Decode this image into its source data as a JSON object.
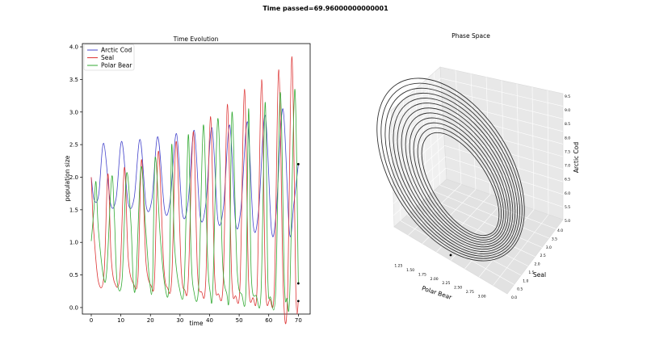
{
  "suptitle": "Time passed=69.96000000000001",
  "chart_data": [
    {
      "type": "line",
      "title": "Time Evolution",
      "xlabel": "time",
      "ylabel": "population size",
      "xlim": [
        -3,
        74
      ],
      "ylim": [
        -0.1,
        4.05
      ],
      "xticks": [
        0,
        10,
        20,
        30,
        40,
        50,
        60,
        70
      ],
      "yticks": [
        0.0,
        0.5,
        1.0,
        1.5,
        2.0,
        2.5,
        3.0,
        3.5,
        4.0
      ],
      "xtick_labels": [
        "0",
        "10",
        "20",
        "30",
        "40",
        "50",
        "60",
        "70"
      ],
      "ytick_labels": [
        "0.0",
        "0.5",
        "1.0",
        "1.5",
        "2.0",
        "2.5",
        "3.0",
        "3.5",
        "4.0"
      ],
      "legend_position": "top-left",
      "series": [
        {
          "name": "Arctic Cod",
          "color": "#4444cc",
          "x": [
            0.0,
            1.0,
            2.5,
            4.2,
            6.5,
            8.4,
            10.3,
            12.5,
            14.5,
            16.5,
            18.6,
            20.5,
            22.5,
            24.8,
            26.6,
            28.8,
            30.8,
            32.7,
            34.8,
            36.8,
            38.7,
            40.8,
            42.8,
            44.7,
            46.8,
            48.8,
            50.6,
            52.8,
            54.8,
            56.6,
            58.8,
            60.9,
            62.5,
            64.8,
            67.0,
            68.5,
            70.0
          ],
          "y": [
            2.0,
            1.65,
            1.72,
            2.52,
            1.6,
            1.68,
            2.55,
            1.6,
            1.68,
            2.58,
            1.55,
            1.66,
            2.62,
            1.5,
            1.62,
            2.67,
            1.45,
            1.6,
            2.72,
            1.4,
            1.58,
            2.76,
            1.35,
            1.55,
            2.8,
            1.3,
            1.52,
            2.85,
            1.25,
            1.5,
            2.95,
            1.2,
            1.45,
            3.05,
            1.15,
            1.6,
            2.2
          ]
        },
        {
          "name": "Seal",
          "color": "#dd3333",
          "x": [
            0.0,
            0.8,
            2.4,
            4.3,
            5.6,
            6.7,
            7.9,
            9.7,
            11.2,
            12.5,
            14.3,
            15.8,
            17.0,
            18.5,
            20.3,
            21.4,
            22.7,
            24.5,
            25.8,
            27.2,
            28.7,
            30.4,
            31.6,
            32.8,
            34.5,
            35.9,
            37.3,
            38.7,
            40.3,
            41.7,
            43.0,
            44.6,
            46.0,
            47.5,
            48.8,
            50.3,
            51.8,
            53.2,
            54.7,
            56.1,
            57.6,
            58.9,
            60.4,
            61.9,
            63.4,
            64.9,
            66.3,
            67.8,
            69.2,
            70.0
          ],
          "y": [
            2.0,
            1.2,
            0.4,
            0.5,
            2.05,
            0.8,
            0.38,
            0.5,
            2.15,
            0.75,
            0.36,
            0.48,
            2.27,
            0.7,
            0.33,
            0.46,
            2.4,
            0.65,
            0.3,
            0.44,
            2.55,
            0.6,
            0.27,
            0.42,
            2.7,
            0.55,
            0.24,
            0.4,
            2.93,
            0.5,
            0.21,
            0.38,
            3.12,
            0.45,
            0.18,
            0.36,
            3.35,
            0.4,
            0.15,
            0.34,
            3.5,
            0.35,
            0.13,
            0.32,
            3.65,
            0.3,
            0.11,
            3.85,
            0.2,
            0.1
          ]
        },
        {
          "name": "Polar Bear",
          "color": "#33aa33",
          "x": [
            0.0,
            0.9,
            1.6,
            2.4,
            4.2,
            5.3,
            6.9,
            7.8,
            8.7,
            10.4,
            11.9,
            13.4,
            14.2,
            15.1,
            16.8,
            18.4,
            19.8,
            20.7,
            21.6,
            23.3,
            24.9,
            26.3,
            27.2,
            28.1,
            29.8,
            31.4,
            32.8,
            33.7,
            34.6,
            36.3,
            37.9,
            39.3,
            40.2,
            41.1,
            42.8,
            44.4,
            45.8,
            46.7,
            47.6,
            49.3,
            50.9,
            52.3,
            53.2,
            54.1,
            55.8,
            57.4,
            58.8,
            59.7,
            60.6,
            62.3,
            63.9,
            65.3,
            66.2,
            67.1,
            68.8,
            70.0
          ],
          "y": [
            1.02,
            1.5,
            1.93,
            1.2,
            0.45,
            0.6,
            2.0,
            1.4,
            0.42,
            0.42,
            2.05,
            1.3,
            0.4,
            0.4,
            2.15,
            1.2,
            0.37,
            0.38,
            2.3,
            1.1,
            0.33,
            0.36,
            2.5,
            1.0,
            0.3,
            0.34,
            2.65,
            0.9,
            0.27,
            0.32,
            2.8,
            0.8,
            0.24,
            0.3,
            2.9,
            0.7,
            0.22,
            0.28,
            3.0,
            0.6,
            0.2,
            0.26,
            3.05,
            0.5,
            0.18,
            0.24,
            3.15,
            0.45,
            0.16,
            0.22,
            3.3,
            0.4,
            0.14,
            0.2,
            3.35,
            0.37
          ]
        }
      ],
      "end_markers": [
        {
          "x": 70.0,
          "y": 2.2
        },
        {
          "x": 70.0,
          "y": 0.37
        },
        {
          "x": 70.0,
          "y": 0.1
        }
      ]
    },
    {
      "type": "line3d",
      "title": "Phase Space",
      "xlabel": "Polar Bear",
      "ylabel": "Seal",
      "zlabel": "Arctic Cod",
      "xtick_labels": [
        "1.25",
        "1.50",
        "1.75",
        "2.00",
        "2.25",
        "2.50",
        "2.75",
        "3.00"
      ],
      "ytick_labels": [
        "0.0",
        "0.5",
        "1.0",
        "1.5",
        "2.0",
        "2.5",
        "3.0",
        "3.5",
        "4.0"
      ],
      "ztick_labels": [
        "5.0",
        "5.5",
        "6.0",
        "6.5",
        "7.0",
        "7.5",
        "8.0",
        "8.5",
        "9.0",
        "9.5"
      ],
      "line_color": "#333333",
      "orbits": 12
    }
  ]
}
